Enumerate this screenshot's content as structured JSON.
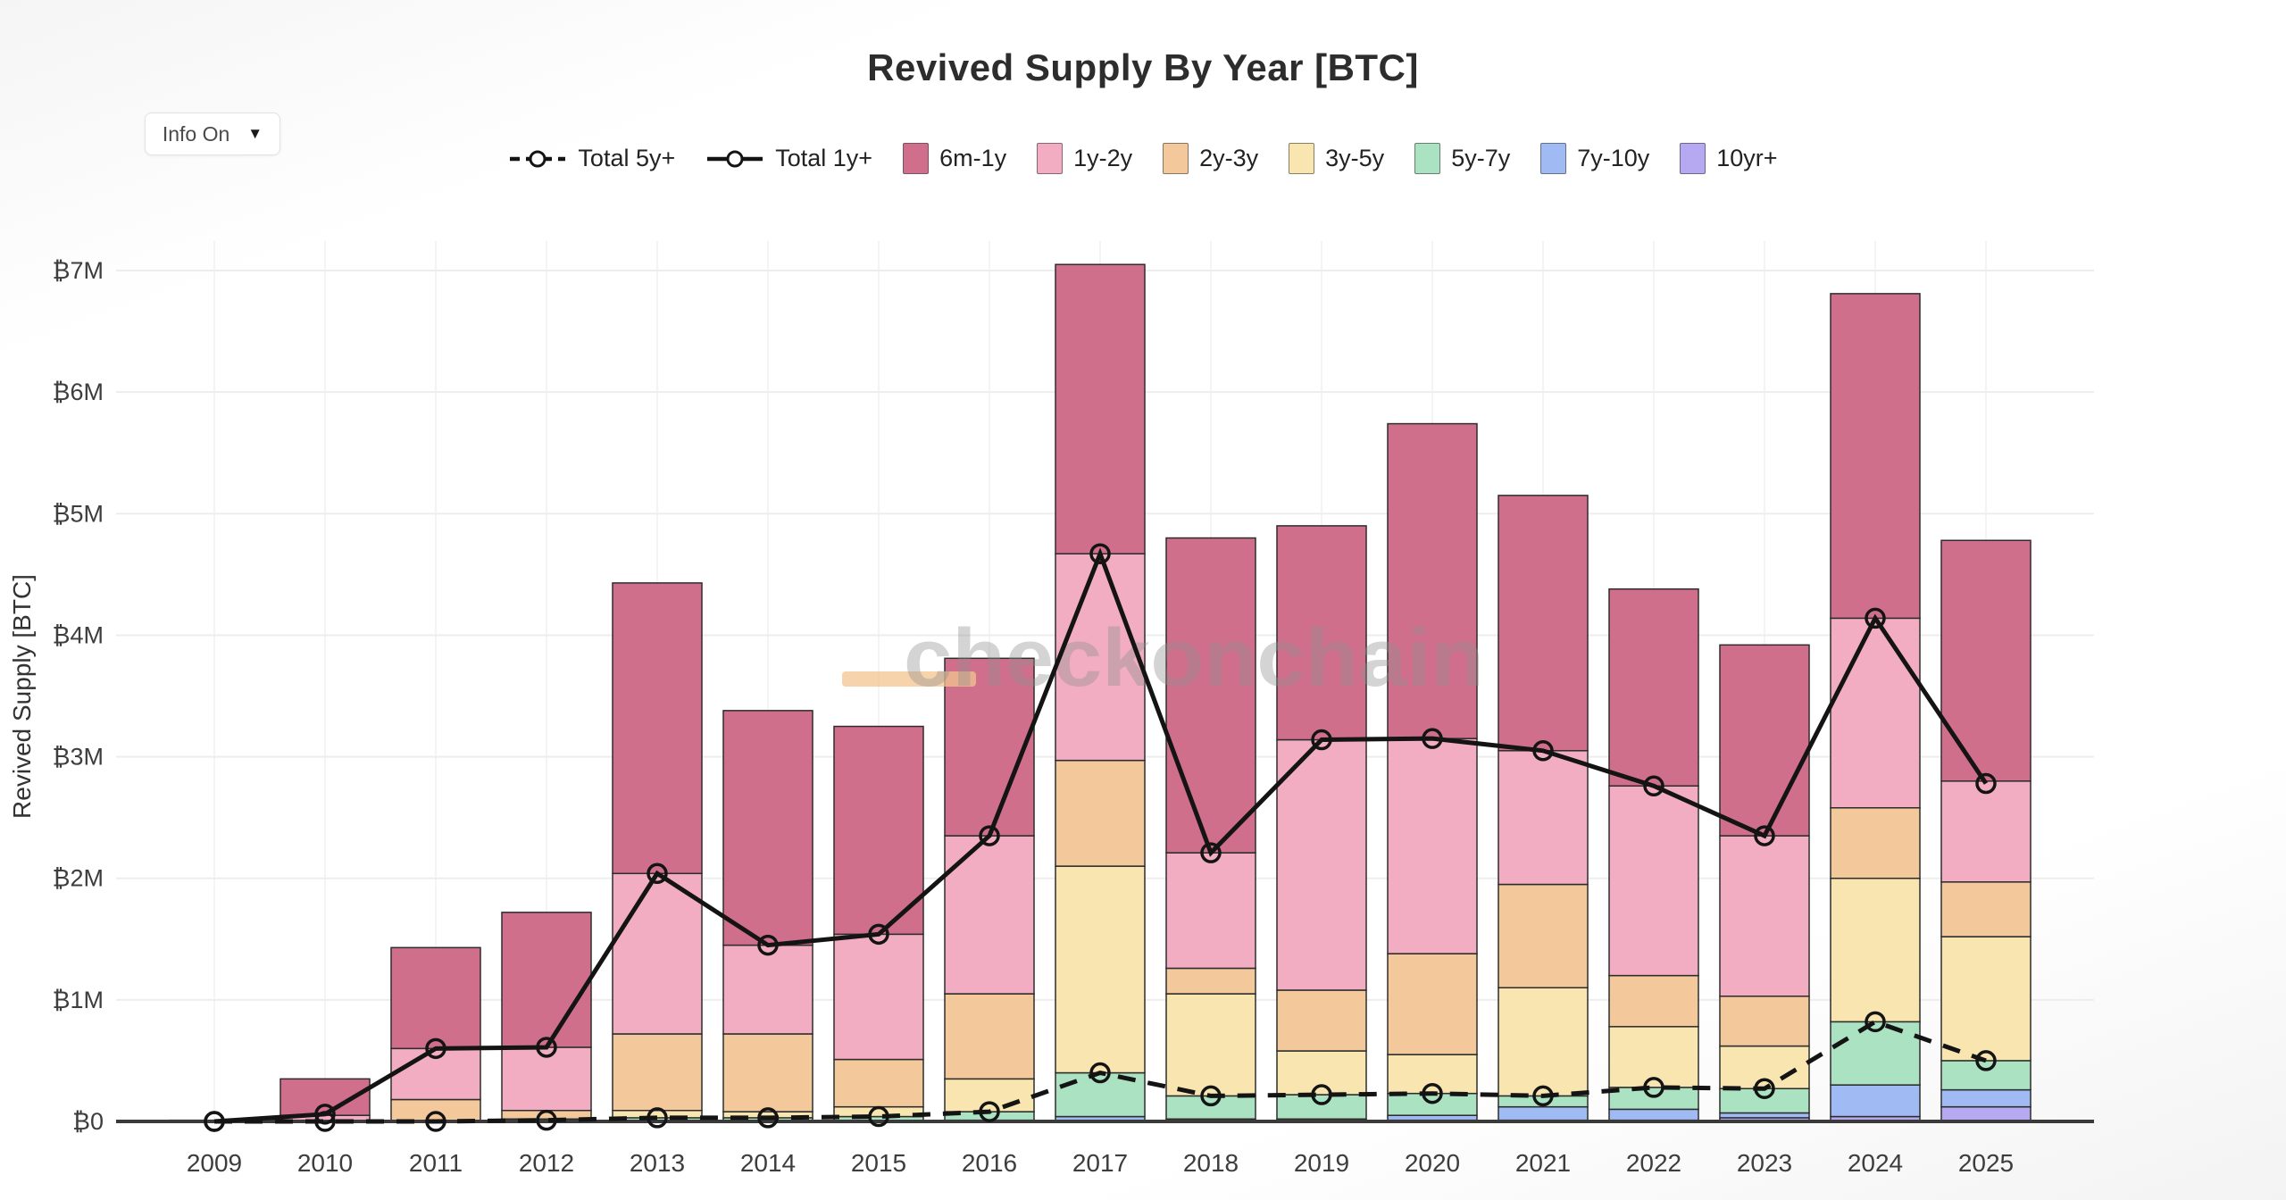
{
  "header": {
    "title": "Revived Supply By Year [BTC]"
  },
  "controls": {
    "info_dropdown": {
      "label": "Info On",
      "arrow": "▼"
    }
  },
  "watermark": {
    "underscore": "_",
    "text": "checkonchain",
    "underscore_color": "#f3c48f",
    "text_color": "#8f8f8f"
  },
  "chart_data": {
    "type": "bar",
    "stacked": true,
    "title": "Revived Supply By Year [BTC]",
    "xlabel": "",
    "ylabel": "Revived Supply [BTC]",
    "unit": "million BTC",
    "ylim": [
      0,
      7.6
    ],
    "y_tick_labels": [
      "₿0",
      "₿1M",
      "₿2M",
      "₿3M",
      "₿4M",
      "₿5M",
      "₿6M",
      "₿7M"
    ],
    "grid": true,
    "legend_position": "top-center",
    "categories": [
      "2009",
      "2010",
      "2011",
      "2012",
      "2013",
      "2014",
      "2015",
      "2016",
      "2017",
      "2018",
      "2019",
      "2020",
      "2021",
      "2022",
      "2023",
      "2024",
      "2025"
    ],
    "stack_order": "bottom-to-top: 10yr+, 7y-10y, 5y-7y, 3y-5y, 2y-3y, 1y-2y, 6m-1y",
    "series": [
      {
        "name": "10yr+",
        "color": "#b6a9f1",
        "values": [
          0,
          0,
          0,
          0,
          0,
          0,
          0,
          0,
          0,
          0,
          0,
          0.01,
          0.01,
          0.01,
          0.03,
          0.04,
          0.12
        ]
      },
      {
        "name": "7y-10y",
        "color": "#a0bbf4",
        "values": [
          0,
          0,
          0,
          0,
          0,
          0,
          0,
          0.01,
          0.04,
          0.02,
          0.02,
          0.04,
          0.11,
          0.09,
          0.04,
          0.26,
          0.14
        ]
      },
      {
        "name": "5y-7y",
        "color": "#abe3c2",
        "values": [
          0,
          0,
          0,
          0.01,
          0.03,
          0.03,
          0.04,
          0.07,
          0.36,
          0.19,
          0.2,
          0.18,
          0.09,
          0.18,
          0.2,
          0.52,
          0.24
        ]
      },
      {
        "name": "3y-5y",
        "color": "#f8e5af",
        "values": [
          0,
          0,
          0,
          0.01,
          0.06,
          0.05,
          0.08,
          0.27,
          1.7,
          0.84,
          0.36,
          0.32,
          0.89,
          0.5,
          0.35,
          1.18,
          1.02
        ]
      },
      {
        "name": "2y-3y",
        "color": "#f3c99c",
        "values": [
          0,
          0,
          0.18,
          0.07,
          0.63,
          0.64,
          0.39,
          0.7,
          0.87,
          0.21,
          0.5,
          0.83,
          0.85,
          0.42,
          0.41,
          0.58,
          0.45
        ]
      },
      {
        "name": "1y-2y",
        "color": "#f2adc2",
        "values": [
          0,
          0.05,
          0.42,
          0.52,
          1.32,
          0.73,
          1.03,
          1.3,
          1.7,
          0.95,
          2.06,
          1.77,
          1.1,
          1.56,
          1.32,
          1.56,
          0.83
        ]
      },
      {
        "name": "6m-1y",
        "color": "#d06f8c",
        "values": [
          0.01,
          0.3,
          0.83,
          1.11,
          2.39,
          1.93,
          1.71,
          1.46,
          2.38,
          2.59,
          1.76,
          2.59,
          2.1,
          1.62,
          1.57,
          2.67,
          1.98
        ]
      }
    ],
    "lines": [
      {
        "name": "Total 5y+",
        "style": "dashed",
        "color": "#141414",
        "values": [
          0.0,
          0.0,
          0.0,
          0.01,
          0.03,
          0.03,
          0.04,
          0.08,
          0.4,
          0.21,
          0.22,
          0.23,
          0.21,
          0.28,
          0.27,
          0.82,
          0.5
        ]
      },
      {
        "name": "Total 1y+",
        "style": "solid",
        "color": "#141414",
        "values": [
          0.0,
          0.06,
          0.6,
          0.61,
          2.04,
          1.45,
          1.54,
          2.35,
          4.67,
          2.21,
          3.14,
          3.15,
          3.05,
          2.76,
          2.35,
          4.14,
          2.78
        ]
      }
    ],
    "bar_totals": [
      0.01,
      0.35,
      1.43,
      1.72,
      4.43,
      3.38,
      3.25,
      3.81,
      7.05,
      4.8,
      4.9,
      5.74,
      5.15,
      4.38,
      3.92,
      6.81,
      4.78
    ]
  }
}
